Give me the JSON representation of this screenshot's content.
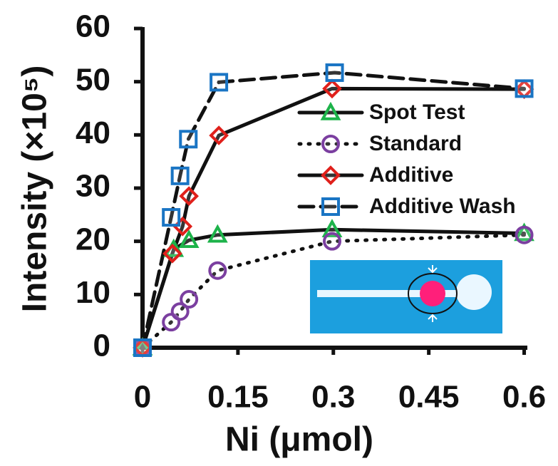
{
  "chart_data": {
    "type": "line",
    "x_label": "Ni (μmol)",
    "y_label": "Intensity (×10⁵)",
    "xlim": [
      0,
      0.605
    ],
    "xticks": [
      0,
      0.15,
      0.3,
      0.45,
      0.6
    ],
    "ylim": [
      0,
      60
    ],
    "yticks": [
      0,
      10,
      20,
      30,
      40,
      50,
      60
    ],
    "legend": "upper right",
    "series": [
      {
        "name": "Spot Test",
        "color": "#1db34a",
        "line_style": "solid",
        "marker": "triangle",
        "x": [
          0,
          0.049,
          0.073,
          0.118,
          0.298,
          0.6
        ],
        "values": [
          0,
          18.5,
          20.2,
          21.2,
          22.2,
          21.5
        ]
      },
      {
        "name": "Standard",
        "color": "#7b3fa0",
        "line_style": "dotted",
        "marker": "circle",
        "x": [
          0,
          0.045,
          0.059,
          0.073,
          0.118,
          0.298,
          0.6
        ],
        "values": [
          0,
          4.8,
          6.8,
          9.1,
          14.5,
          20,
          21.2
        ]
      },
      {
        "name": "Additive",
        "color": "#e0201b",
        "line_style": "solid",
        "marker": "diamond",
        "x": [
          0,
          0.047,
          0.063,
          0.073,
          0.12,
          0.298,
          0.6
        ],
        "values": [
          0,
          17.7,
          22.8,
          28.5,
          39.9,
          48.7,
          48.6
        ]
      },
      {
        "name": "Additive Wash",
        "color": "#1a75c4",
        "line_style": "dashed",
        "marker": "square",
        "x": [
          0,
          0.045,
          0.059,
          0.072,
          0.12,
          0.302,
          0.6
        ],
        "values": [
          0,
          24.5,
          32.3,
          39.2,
          49.9,
          51.7,
          48.7
        ]
      }
    ]
  }
}
